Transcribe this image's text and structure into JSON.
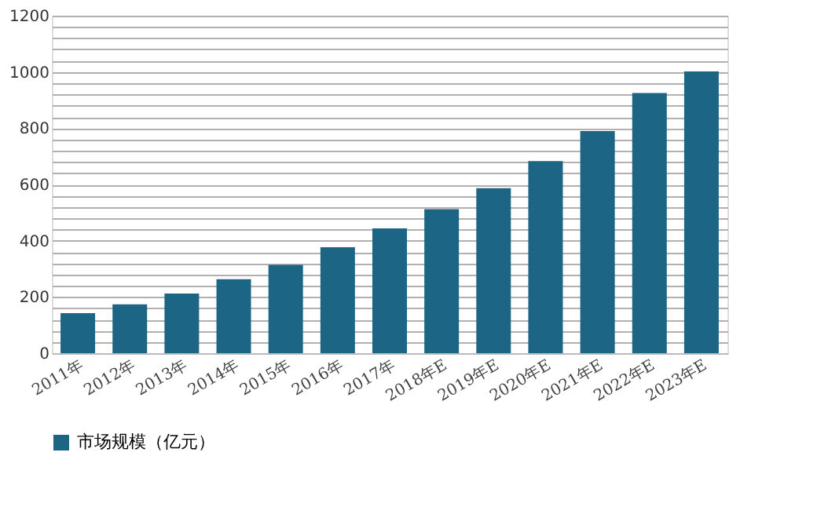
{
  "chart_data": {
    "type": "bar",
    "categories": [
      "2011年",
      "2012年",
      "2013年",
      "2014年",
      "2015年",
      "2016年",
      "2017年",
      "2018年E",
      "2019年E",
      "2020年E",
      "2021年E",
      "2022年E",
      "2023年E"
    ],
    "series": [
      {
        "name": "市场规模（亿元）",
        "color": "#1d6584",
        "values": [
          142,
          174,
          212,
          263,
          314,
          377,
          444,
          512,
          587,
          683,
          790,
          925,
          1002
        ]
      }
    ],
    "ylim": [
      0,
      1200
    ],
    "yticks": [
      0,
      {
        "value": 40,
        "label": null
      },
      {
        "value": 80,
        "label": null
      },
      {
        "value": 120,
        "label": null
      },
      {
        "value": 160,
        "label": null
      },
      200,
      {
        "value": 240,
        "label": null
      },
      {
        "value": 280,
        "label": null
      },
      {
        "value": 320,
        "label": null
      },
      {
        "value": 360,
        "label": null
      },
      400,
      {
        "value": 440,
        "label": null
      },
      {
        "value": 480,
        "label": null
      },
      {
        "value": 520,
        "label": null
      },
      {
        "value": 560,
        "label": null
      },
      600,
      {
        "value": 640,
        "label": null
      },
      {
        "value": 680,
        "label": null
      },
      {
        "value": 720,
        "label": null
      },
      {
        "value": 760,
        "label": null
      },
      800,
      {
        "value": 840,
        "label": null
      },
      {
        "value": 880,
        "label": null
      },
      {
        "value": 920,
        "label": null
      },
      {
        "value": 960,
        "label": null
      },
      1000,
      {
        "value": 1040,
        "label": null
      },
      {
        "value": 1080,
        "label": null
      },
      {
        "value": 1120,
        "label": null
      },
      {
        "value": 1160,
        "label": null
      },
      1200
    ],
    "grid": "y",
    "legend": "bottom"
  }
}
